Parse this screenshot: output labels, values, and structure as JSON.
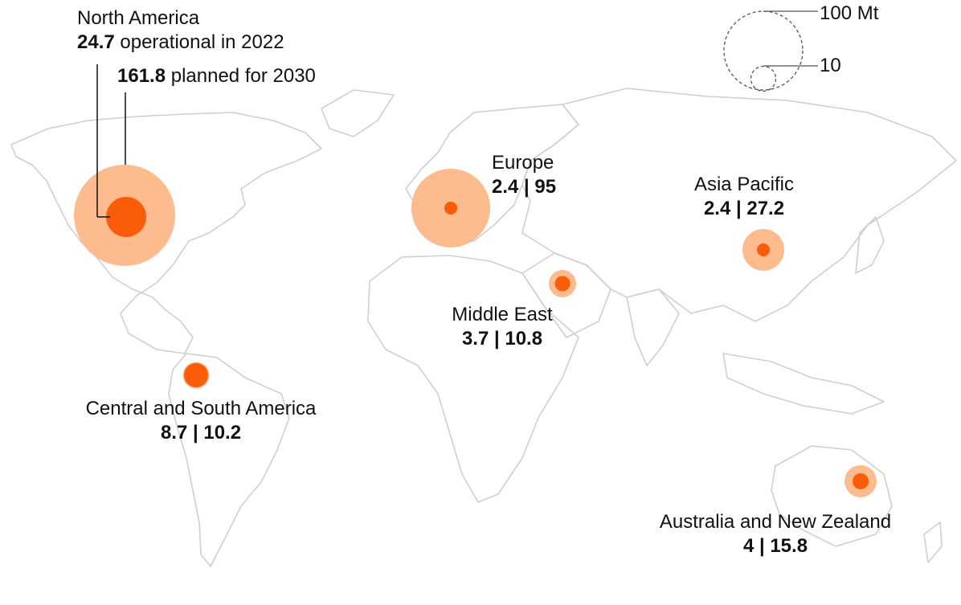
{
  "colors": {
    "planned": "#fdbb8e",
    "operational": "#fa5c0a",
    "land_stroke": "#cfcfcf"
  },
  "legend": {
    "large_label": "100 Mt",
    "small_label": "10",
    "large_value": 100,
    "small_value": 10
  },
  "north_america": {
    "name": "North America",
    "operational_value": "24.7",
    "operational_text": " operational in 2022",
    "planned_value": "161.8",
    "planned_text": " planned for 2030"
  },
  "regions": [
    {
      "key": "europe",
      "name": "Europe",
      "values": "2.4 | 95"
    },
    {
      "key": "asia",
      "name": "Asia Pacific",
      "values": "2.4 | 27.2"
    },
    {
      "key": "middle_east",
      "name": "Middle East",
      "values": "3.7 | 10.8"
    },
    {
      "key": "csa",
      "name": "Central and South America",
      "values": "8.7 | 10.2"
    },
    {
      "key": "anz",
      "name": "Australia and New Zealand",
      "values": "4 | 15.8"
    }
  ],
  "chart_data": {
    "type": "bubble-map",
    "unit": "Mt",
    "series": [
      {
        "name": "operational in 2022",
        "values": [
          24.7,
          2.4,
          2.4,
          3.7,
          8.7,
          4
        ]
      },
      {
        "name": "planned for 2030",
        "values": [
          161.8,
          95,
          27.2,
          10.8,
          10.2,
          15.8
        ]
      }
    ],
    "categories": [
      "North America",
      "Europe",
      "Asia Pacific",
      "Middle East",
      "Central and South America",
      "Australia and New Zealand"
    ]
  }
}
